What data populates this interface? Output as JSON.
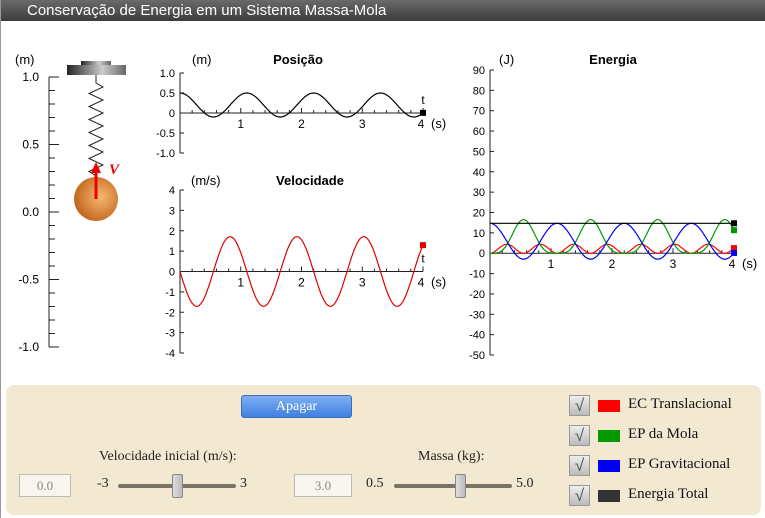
{
  "window": {
    "title": "Conservação de Energia em um Sistema Massa-Mola"
  },
  "scale": {
    "unit": "(m)",
    "ticks": [
      "1.0",
      "0.5",
      "0.0",
      "-0.5",
      "-1.0"
    ],
    "velocity_label": "V"
  },
  "chart_data": [
    {
      "type": "line",
      "title": "Posição",
      "ylabel": "(m)",
      "xlabel": "t",
      "xunit": "(s)",
      "xlim": [
        0,
        4
      ],
      "ylim": [
        -1,
        1
      ],
      "yticks": [
        "1.0",
        "0.5",
        "0",
        "-0.5",
        "-1.0"
      ],
      "xticks": [
        "1",
        "2",
        "3",
        "4"
      ],
      "series": [
        {
          "color": "#000000",
          "model": "x(t) = 0.2 + 0.3·cos(2πt/1.1)",
          "equilibrium": 0.2,
          "amplitude": 0.3,
          "period": 1.1
        }
      ]
    },
    {
      "type": "line",
      "title": "Velocidade",
      "ylabel": "(m/s)",
      "xlabel": "t",
      "xunit": "(s)",
      "xlim": [
        0,
        4
      ],
      "ylim": [
        -4,
        4
      ],
      "yticks": [
        "4",
        "3",
        "2",
        "1",
        "0",
        "-1",
        "-2",
        "-3",
        "-4"
      ],
      "xticks": [
        "1",
        "2",
        "3",
        "4"
      ],
      "series": [
        {
          "color": "#e00000",
          "model": "v(t) = -1.71·sin(2πt/1.1)",
          "amplitude": 1.71,
          "period": 1.1
        }
      ]
    },
    {
      "type": "line",
      "title": "Energia",
      "ylabel": "(J)",
      "xunit": "(s)",
      "xlim": [
        0,
        4
      ],
      "ylim": [
        -50,
        90
      ],
      "yticks": [
        "90",
        "80",
        "70",
        "60",
        "50",
        "40",
        "30",
        "20",
        "10",
        "0",
        "-10",
        "-20",
        "-30",
        "-40",
        "-50"
      ],
      "xticks": [
        "1",
        "2",
        "3",
        "4"
      ],
      "series": [
        {
          "name": "EC Translacional",
          "color": "#ff0000",
          "min": 0,
          "max": 4.4,
          "period": 1.1,
          "phase": "zero at t=0"
        },
        {
          "name": "EP da Mola",
          "color": "#009900",
          "min": 0,
          "max": 16.5,
          "period": 1.1,
          "phase": "zero at t=0"
        },
        {
          "name": "EP Gravitacional",
          "color": "#0000ee",
          "min": -2.9,
          "max": 14.7,
          "period": 1.1,
          "phase": "max at t=0"
        },
        {
          "name": "Energia Total",
          "color": "#000000",
          "value": 14.7
        }
      ]
    }
  ],
  "controls": {
    "clear_label": "Apagar",
    "velocity": {
      "label": "Velocidade inicial (m/s):",
      "value": "0.0",
      "min": "-3",
      "max": "3",
      "fraction": 0.5
    },
    "mass": {
      "label": "Massa  (kg):",
      "value": "3.0",
      "min": "0.5",
      "max": "5.0",
      "fraction": 0.56
    }
  },
  "legend": [
    {
      "label": "EC Translacional",
      "color": "#ff0000",
      "checked": true
    },
    {
      "label": "EP da Mola",
      "color": "#009900",
      "checked": true
    },
    {
      "label": "EP Gravitacional",
      "color": "#0000ee",
      "checked": true
    },
    {
      "label": "Energia Total",
      "color": "#333333",
      "checked": true
    }
  ],
  "checkmark": "√"
}
